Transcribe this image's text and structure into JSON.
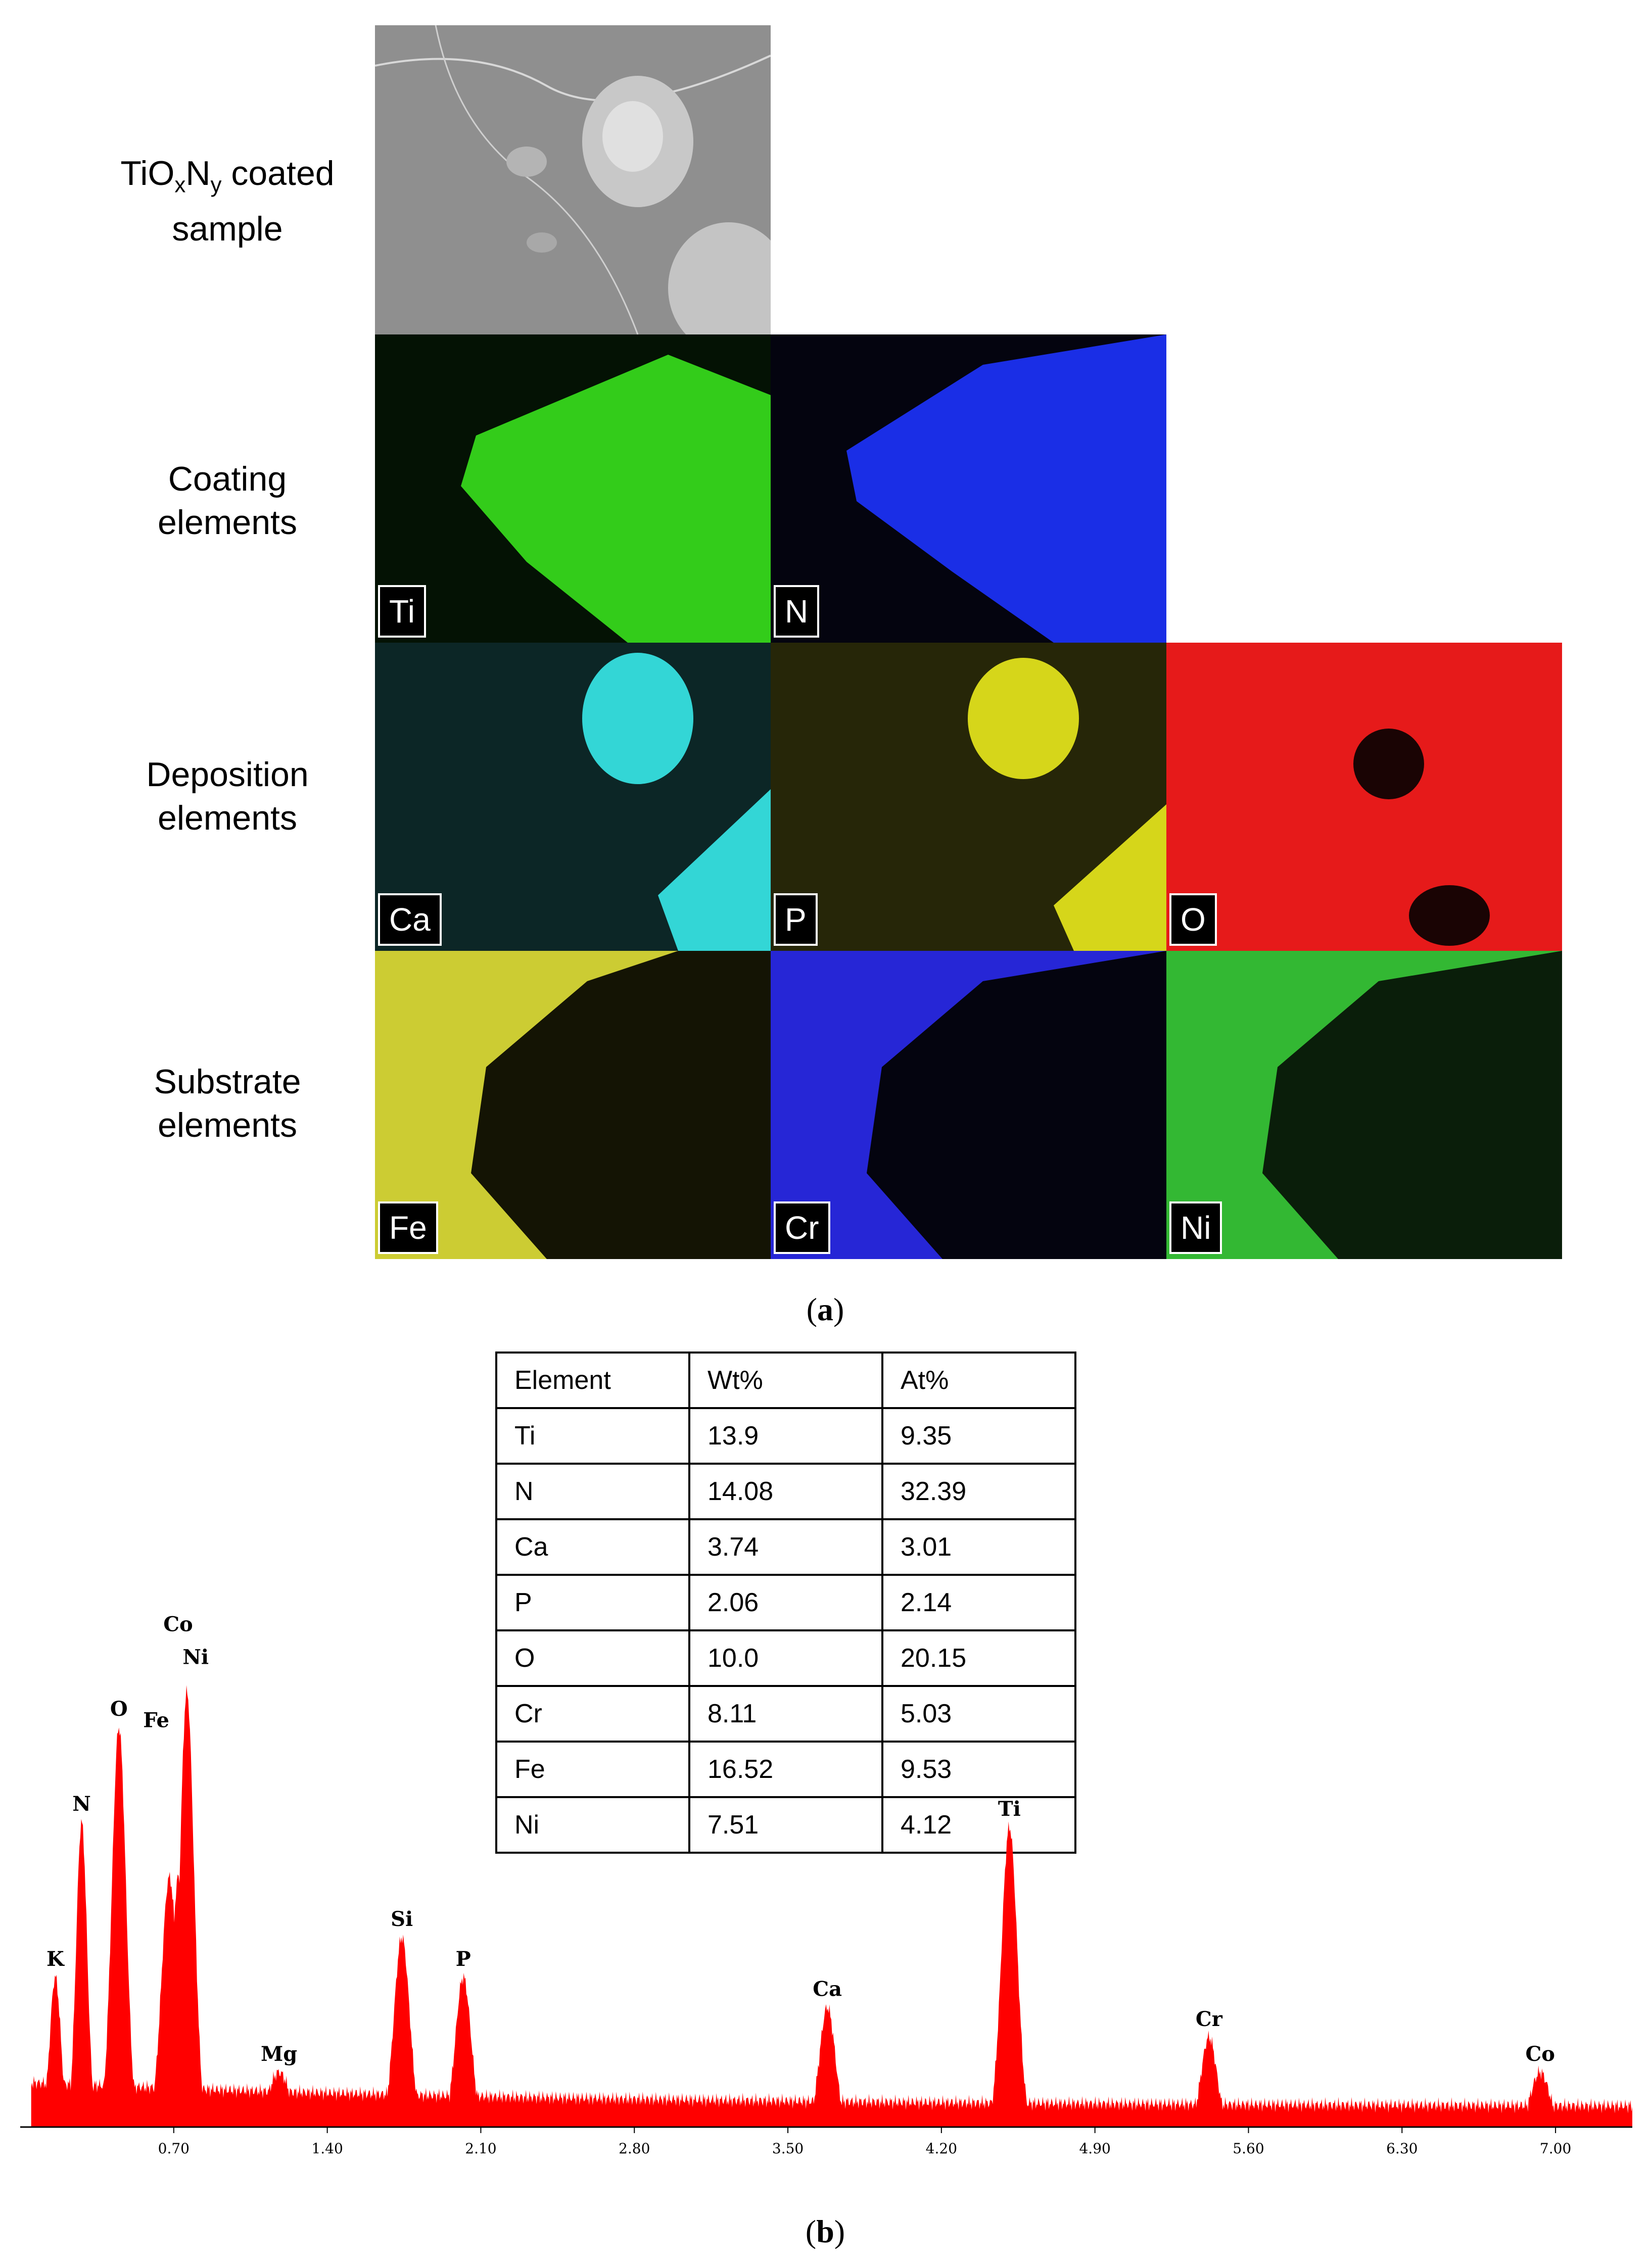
{
  "panel_a": {
    "row_labels": [
      {
        "line1_parts": [
          "TiO",
          "x",
          "N",
          "y",
          " coated"
        ],
        "line2": "sample"
      },
      {
        "line1": "Coating",
        "line2": "elements"
      },
      {
        "line1": "Deposition",
        "line2": "elements"
      },
      {
        "line1": "Substrate",
        "line2": "elements"
      }
    ],
    "maps": [
      {
        "symbol": "Ti",
        "color": "#33cc1a"
      },
      {
        "symbol": "N",
        "color": "#1a2ee6"
      },
      {
        "symbol": "Ca",
        "color": "#33d6d6"
      },
      {
        "symbol": "P",
        "color": "#d6d61a"
      },
      {
        "symbol": "O",
        "color": "#e61a1a"
      },
      {
        "symbol": "Fe",
        "color": "#cccc33"
      },
      {
        "symbol": "Cr",
        "color": "#2626d6"
      },
      {
        "symbol": "Ni",
        "color": "#33b833"
      }
    ],
    "caption": "a"
  },
  "table": {
    "headers": [
      "Element",
      "Wt%",
      "At%"
    ],
    "rows": [
      [
        "Ti",
        "13.9",
        "9.35"
      ],
      [
        "N",
        "14.08",
        "32.39"
      ],
      [
        "Ca",
        "3.74",
        "3.01"
      ],
      [
        "P",
        "2.06",
        "2.14"
      ],
      [
        "O",
        "10.0",
        "20.15"
      ],
      [
        "Cr",
        "8.11",
        "5.03"
      ],
      [
        "Fe",
        "16.52",
        "9.53"
      ],
      [
        "Ni",
        "7.51",
        "4.12"
      ]
    ]
  },
  "chart_data": {
    "type": "area",
    "color": "#ff0000",
    "xlim": [
      0,
      7.35
    ],
    "ylim": [
      0,
      100
    ],
    "x_ticks": [
      "0.70",
      "1.40",
      "2.10",
      "2.80",
      "3.50",
      "4.20",
      "4.90",
      "5.60",
      "6.30",
      "7.00"
    ],
    "x_tick_values": [
      0.7,
      1.4,
      2.1,
      2.8,
      3.5,
      4.2,
      4.9,
      5.6,
      6.3,
      7.0
    ],
    "peaks": [
      {
        "label": "K",
        "x": 0.16,
        "y": 30,
        "w": 0.035
      },
      {
        "label": "N",
        "x": 0.28,
        "y": 61,
        "w": 0.035
      },
      {
        "label": "O",
        "x": 0.45,
        "y": 80,
        "w": 0.045
      },
      {
        "label": "Fe",
        "x": 0.68,
        "y": 50,
        "w": 0.05
      },
      {
        "label": "Co",
        "x": 0.72,
        "y": 50,
        "w": 0.04
      },
      {
        "label": "Ni",
        "x": 0.76,
        "y": 87,
        "w": 0.045
      },
      {
        "label": "Mg",
        "x": 1.18,
        "y": 11,
        "w": 0.07
      },
      {
        "label": "Si",
        "x": 1.74,
        "y": 38,
        "w": 0.05
      },
      {
        "label": "P",
        "x": 2.02,
        "y": 30,
        "w": 0.05
      },
      {
        "label": "Ca",
        "x": 3.68,
        "y": 24,
        "w": 0.05
      },
      {
        "label": "Ti",
        "x": 4.51,
        "y": 60,
        "w": 0.05
      },
      {
        "label": "Cr",
        "x": 5.42,
        "y": 18,
        "w": 0.05
      },
      {
        "label": "Co",
        "x": 6.93,
        "y": 11,
        "w": 0.06
      }
    ],
    "caption": "b"
  }
}
